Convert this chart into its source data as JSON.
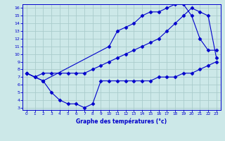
{
  "xlabel": "Graphe des températures (°c)",
  "bg_color": "#cce8e8",
  "grid_color": "#aacccc",
  "line_color": "#0000cc",
  "series1_x": [
    0,
    1,
    2,
    3,
    4,
    5,
    6,
    7,
    8,
    9,
    10,
    11,
    12,
    13,
    14,
    15,
    16,
    17,
    18,
    19,
    20,
    21,
    22,
    23
  ],
  "series1_y": [
    7.5,
    7.0,
    7.5,
    7.5,
    7.5,
    7.5,
    7.5,
    7.5,
    8.0,
    8.5,
    9.0,
    9.5,
    10.0,
    10.5,
    11.0,
    11.5,
    12.0,
    13.0,
    14.0,
    15.0,
    16.0,
    15.5,
    15.0,
    9.5
  ],
  "series2_x": [
    0,
    2,
    10,
    11,
    12,
    13,
    14,
    15,
    16,
    17,
    18,
    19,
    20,
    21,
    22,
    23
  ],
  "series2_y": [
    7.5,
    6.5,
    11.0,
    13.0,
    13.5,
    14.0,
    15.0,
    15.5,
    15.5,
    16.0,
    16.5,
    16.5,
    15.0,
    12.0,
    10.5,
    10.5
  ],
  "series3_x": [
    0,
    1,
    2,
    3,
    4,
    5,
    6,
    7,
    8,
    9,
    10,
    11,
    12,
    13,
    14,
    15,
    16,
    17,
    18,
    19,
    20,
    21,
    22,
    23
  ],
  "series3_y": [
    7.5,
    7.0,
    6.5,
    5.0,
    4.0,
    3.5,
    3.5,
    3.0,
    3.5,
    6.5,
    6.5,
    6.5,
    6.5,
    6.5,
    6.5,
    6.5,
    7.0,
    7.0,
    7.0,
    7.5,
    7.5,
    8.0,
    8.5,
    9.0
  ],
  "xlim": [
    -0.5,
    23.5
  ],
  "ylim": [
    2.7,
    16.5
  ],
  "xticks": [
    0,
    1,
    2,
    3,
    4,
    5,
    6,
    7,
    8,
    9,
    10,
    11,
    12,
    13,
    14,
    15,
    16,
    17,
    18,
    19,
    20,
    21,
    22,
    23
  ],
  "yticks": [
    3,
    4,
    5,
    6,
    7,
    8,
    9,
    10,
    11,
    12,
    13,
    14,
    15,
    16
  ]
}
